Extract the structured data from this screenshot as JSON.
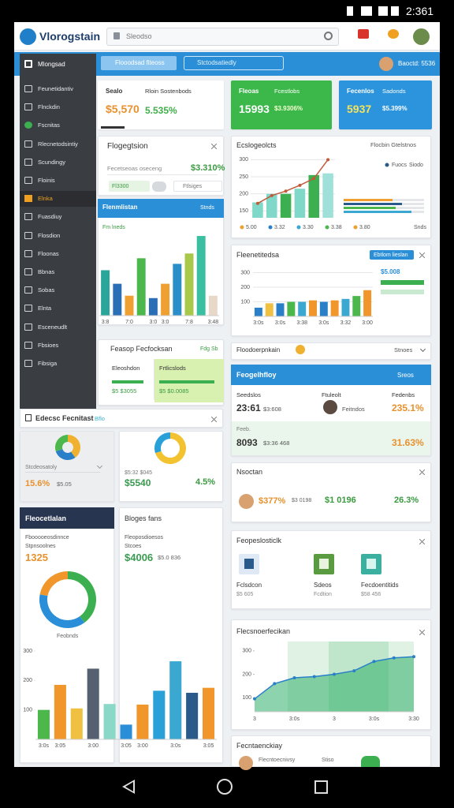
{
  "status_bar": {
    "time": "2:361"
  },
  "header": {
    "logo": "Vlorogstain",
    "search": "Sleodso"
  },
  "toolbar": {
    "tabs": [
      "Flooodsad fiteoss",
      "Stctodsatiedly"
    ],
    "user": "Baoctd: 5536"
  },
  "sidebar": {
    "title": "Mlongsad",
    "items": [
      "Feunetidantiv",
      "Flnckdin",
      "Fscnitas",
      "Rlecnetodsintiy",
      "Scundingy",
      "Floinis",
      "Elnka",
      "Fuasdiuy",
      "Flosdion",
      "Floonas",
      "Bbnas",
      "Sobas",
      "Elnta",
      "Esceneudlt",
      "Fbsioes",
      "Fibsiga"
    ]
  },
  "stats": [
    {
      "label": "Sealo",
      "sublabel": "Rloin Sostenbods",
      "value": "$5,570",
      "change": "5.535%"
    },
    {
      "label": "Fleoas",
      "sublabel": "Fcestlobs",
      "value": "15993",
      "change": "$3.9306%"
    },
    {
      "label": "Fecenlos",
      "sublabel": "Sadonds",
      "value": "5937",
      "change": "$5.399%"
    }
  ],
  "progress_card": {
    "title": "Flogegtsion",
    "label": "Fecetseoas oseceng",
    "value": "$3.310%",
    "chips": [
      "Fl3300",
      "Ftlsiges"
    ]
  },
  "chart_a": {
    "type": "bar",
    "title": "Flenmlistan",
    "action": "Stnds",
    "legend": "Fm lneds",
    "categories": [
      "3:8",
      null,
      "7:0",
      null,
      "3:0",
      "3:0",
      null,
      "7:8",
      null,
      "3:48"
    ],
    "values": [
      57,
      40,
      25,
      72,
      22,
      40,
      65,
      78,
      100,
      25
    ],
    "colors": [
      "#2aa59a",
      "#2a6fb5",
      "#f0a030",
      "#4cb84c",
      "#2a6fb5",
      "#f0a030",
      "#2a8fc8",
      "#a8c84a",
      "#3ac0a0",
      "#e8d8c8"
    ],
    "ylim": [
      0,
      105
    ]
  },
  "chart_b": {
    "type": "bar-line",
    "title": "Ecslogeolcts",
    "subtitle": "Flocbin Gtelstnos",
    "categories": [
      "5.00",
      "3.32",
      "3.30",
      "3.38",
      "3.80",
      null
    ],
    "category_colors": [
      "#f0a030",
      "#2a80c8",
      "#3aa8d0",
      "#4cb84c",
      "#f0a030",
      "#999999"
    ],
    "bars": {
      "values": [
        175,
        200,
        200,
        215,
        255,
        260
      ],
      "colors": [
        "#7fd8c8",
        "#7fd8c8",
        "#3cb050",
        "#7fd8c8",
        "#3cb050",
        "#9fe0d8"
      ]
    },
    "line": {
      "color": "#c05a3a",
      "values": [
        172,
        195,
        208,
        225,
        245,
        300
      ]
    },
    "ylim": [
      130,
      310
    ],
    "yticks": [
      150,
      200,
      250,
      300
    ],
    "grid": true,
    "side_legend": [
      "Fuocs",
      "Siodo"
    ],
    "footer": "Snds"
  },
  "chart_c": {
    "type": "bar",
    "title": "Fleenetitedsa",
    "badge": "Ebtlom lieslan",
    "side_value": "$5.008",
    "categories": [
      "3:0s",
      null,
      "3:0s",
      null,
      "3:38",
      null,
      "3:0s",
      null,
      "3:32",
      null,
      "3:00"
    ],
    "values": [
      60,
      90,
      90,
      100,
      100,
      110,
      100,
      110,
      120,
      140,
      180
    ],
    "colors": [
      "#2a80c8",
      "#f0c040",
      "#2a80c8",
      "#4cb84c",
      "#3aa8d0",
      "#f0962a",
      "#2a80c8",
      "#f0962a",
      "#3aa8d0",
      "#4cb84c",
      "#f0962a"
    ],
    "ylim": [
      0,
      330
    ],
    "yticks": [
      100,
      200,
      300
    ],
    "grid": true
  },
  "summary_card": {
    "title": "Feasop Fecfocksan",
    "tag": "Fdg Sb",
    "left_label": "Eleoshdon",
    "left_value": "$5 $3055",
    "right_label": "Frtlicslods",
    "right_value": "$5 $0.0085"
  },
  "row_link": {
    "label": "Floodoerpnkain",
    "action": "Stnoes"
  },
  "report_card": {
    "title": "Feogelhfloy",
    "action": "Sreos",
    "columns": [
      "Seedslos",
      "Ftuleolt",
      "Fedenbs"
    ],
    "row1": {
      "value": "23:61",
      "sub": "$3:608",
      "name": "Feitndos",
      "change": "235.1%"
    },
    "row2": {
      "label": "Feeb.",
      "value": "8093",
      "sub": "$3:36 468",
      "change": "31.63%"
    }
  },
  "section": {
    "title": "Edecsc Fecnitast",
    "tag": "Bflo"
  },
  "donut_s": {
    "type": "pie",
    "label": "Stcdeosatoly",
    "value": "15.6%",
    "sub": "$5.05",
    "values": [
      40,
      30,
      30
    ],
    "colors": [
      "#f0b030",
      "#2a80c8",
      "#4cb84c"
    ]
  },
  "donut_m": {
    "type": "pie",
    "value": "$5540",
    "sub": "$5:32 $045",
    "change": "4.5%",
    "values": [
      70,
      30
    ],
    "colors": [
      "#f2c230",
      "#2aa0d8"
    ]
  },
  "news_card": {
    "title": "Nsoctan",
    "value": "$377%",
    "sub": "$3 0198",
    "amount": "$1 0196",
    "change": "26.3%"
  },
  "left_panel": {
    "title": "Fleocetlalan",
    "label": "Fbooooeosdinnce",
    "sublabel": "Stpnsoolnes",
    "value": "1325",
    "donut_label": "Feobnds"
  },
  "donut_l": {
    "type": "pie",
    "values": [
      40,
      38,
      22
    ],
    "colors": [
      "#3cb050",
      "#2a8fd8",
      "#f0962a"
    ]
  },
  "mid_panel": {
    "title": "Bloges fans",
    "label": "Fleoposdioesos",
    "sublabel": "Stcoes",
    "value": "$4006",
    "sub": "$5.0 836"
  },
  "chart_d": {
    "type": "bar",
    "categories": [
      "3:0s",
      "3:05",
      null,
      "3:00",
      null,
      "3:05",
      "3:00",
      null,
      "3:0s",
      null,
      "3:05"
    ],
    "values": [
      100,
      185,
      105,
      240,
      120,
      50,
      118,
      165,
      265,
      158,
      175
    ],
    "colors": [
      "#4cb84c",
      "#f0962a",
      "#f0c040",
      "#556070",
      "#8ad8c8",
      "#2a8fd8",
      "#f0962a",
      "#2aa0d8",
      "#3aa8d0",
      "#2a5a8a",
      "#f0962a"
    ],
    "ylim": [
      0,
      300
    ],
    "yticks": [
      100,
      200,
      300
    ]
  },
  "files_card": {
    "title": "Feopeslosticlk",
    "items": [
      {
        "name": "Fclsdcon",
        "sub": "$5 605"
      },
      {
        "name": "Sdeos",
        "sub": "Fcdtion"
      },
      {
        "name": "Fecdoentitids",
        "sub": "$58 456"
      }
    ]
  },
  "chart_e": {
    "type": "line",
    "title": "Flecsnoerfecikan",
    "categories": [
      "3",
      null,
      "3:0s",
      null,
      "3",
      null,
      "3:0s",
      null,
      "3:30"
    ],
    "values": [
      95,
      160,
      185,
      190,
      200,
      215,
      255,
      270,
      275
    ],
    "color": "#2a80c8",
    "ylim": [
      40,
      340
    ],
    "yticks": [
      100,
      200,
      300
    ]
  },
  "bottom_card": {
    "title": "Fecntaenckiay",
    "sub": "Flecntoecnivsy",
    "action": "Stiso"
  }
}
